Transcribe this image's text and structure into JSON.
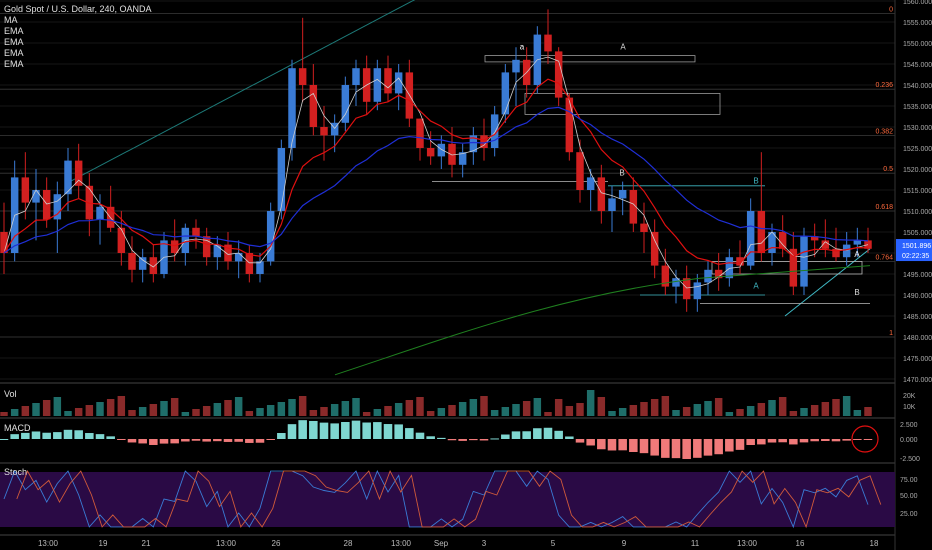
{
  "header": {
    "title": "Gold Spot / U.S. Dollar, 240, OANDA",
    "indicators": [
      "MA",
      "EMA",
      "EMA",
      "EMA",
      "EMA"
    ]
  },
  "panes": {
    "volume": "Vol",
    "macd": "MACD",
    "stoch": "Stoch"
  },
  "colors": {
    "up": "#3a7bd5",
    "down": "#d22020",
    "bg": "#000000",
    "price_tag": "#2962ff",
    "ma": "#cfcfcf",
    "ema_fast": "#e01010",
    "ema_mid": "#1f2fd6",
    "ema_slow": "#1f7f1f",
    "fib": "#ff6a3d",
    "zone": "#9a9a9a",
    "teal": "#3fb8c4",
    "stoch_bg": "#2a0a45"
  },
  "last_price": {
    "value": "1501.896",
    "countdown": "02:22:35"
  },
  "chart_data": {
    "type": "candlestick",
    "title": "Gold Spot / U.S. Dollar, 240, OANDA",
    "timeframe": "240",
    "ylim": [
      1470,
      1560
    ],
    "price_ticks": [
      "1560.000",
      "1555.000",
      "1550.000",
      "1545.000",
      "1540.000",
      "1535.000",
      "1530.000",
      "1525.000",
      "1520.000",
      "1515.000",
      "1510.000",
      "1505.000",
      "1500.000",
      "1495.000",
      "1490.000",
      "1485.000",
      "1480.000",
      "1475.000",
      "1470.000"
    ],
    "x_ticks": [
      "13:00",
      "19",
      "21",
      "13:00",
      "26",
      "28",
      "13:00",
      "Sep",
      "3",
      "5",
      "9",
      "11",
      "13:00",
      "16",
      "18"
    ],
    "fib_levels": [
      {
        "label": "0",
        "price": 1557
      },
      {
        "label": "0.236",
        "price": 1539
      },
      {
        "label": "0.382",
        "price": 1528
      },
      {
        "label": "0.5",
        "price": 1519
      },
      {
        "label": "0.618",
        "price": 1510
      },
      {
        "label": "0.764",
        "price": 1498
      },
      {
        "label": "1",
        "price": 1480
      }
    ],
    "annotations": [
      "a",
      "A",
      "B",
      "B",
      "A",
      "A",
      "B"
    ],
    "volume_ticks": [
      "20K",
      "10K"
    ],
    "macd_ticks": [
      "2.500",
      "0.000",
      "-2.500"
    ],
    "stoch_ticks": [
      "75.00",
      "50.00",
      "25.00"
    ],
    "candles_ohlc": [
      [
        1505,
        1512,
        1495,
        1500
      ],
      [
        1500,
        1522,
        1498,
        1518
      ],
      [
        1518,
        1524,
        1508,
        1512
      ],
      [
        1512,
        1520,
        1503,
        1515
      ],
      [
        1515,
        1518,
        1506,
        1508
      ],
      [
        1508,
        1517,
        1500,
        1514
      ],
      [
        1514,
        1525,
        1510,
        1522
      ],
      [
        1522,
        1526,
        1513,
        1516
      ],
      [
        1516,
        1519,
        1504,
        1508
      ],
      [
        1508,
        1514,
        1502,
        1511
      ],
      [
        1511,
        1516,
        1505,
        1506
      ],
      [
        1506,
        1510,
        1497,
        1500
      ],
      [
        1500,
        1504,
        1493,
        1496
      ],
      [
        1496,
        1501,
        1493,
        1499
      ],
      [
        1499,
        1502,
        1493,
        1495
      ],
      [
        1495,
        1505,
        1494,
        1503
      ],
      [
        1503,
        1508,
        1498,
        1500
      ],
      [
        1500,
        1507,
        1497,
        1506
      ],
      [
        1506,
        1508,
        1501,
        1504
      ],
      [
        1504,
        1506,
        1497,
        1499
      ],
      [
        1499,
        1504,
        1496,
        1502
      ],
      [
        1502,
        1505,
        1496,
        1498
      ],
      [
        1498,
        1503,
        1494,
        1500
      ],
      [
        1500,
        1502,
        1493,
        1495
      ],
      [
        1495,
        1500,
        1493,
        1498
      ],
      [
        1498,
        1512,
        1497,
        1510
      ],
      [
        1510,
        1527,
        1508,
        1525
      ],
      [
        1525,
        1546,
        1522,
        1544
      ],
      [
        1544,
        1556,
        1536,
        1540
      ],
      [
        1540,
        1545,
        1528,
        1530
      ],
      [
        1530,
        1535,
        1522,
        1528
      ],
      [
        1528,
        1533,
        1524,
        1531
      ],
      [
        1531,
        1542,
        1529,
        1540
      ],
      [
        1540,
        1546,
        1535,
        1544
      ],
      [
        1544,
        1547,
        1533,
        1536
      ],
      [
        1536,
        1546,
        1534,
        1544
      ],
      [
        1544,
        1547,
        1536,
        1538
      ],
      [
        1538,
        1545,
        1534,
        1543
      ],
      [
        1543,
        1546,
        1530,
        1532
      ],
      [
        1532,
        1532,
        1522,
        1525
      ],
      [
        1525,
        1529,
        1521,
        1523
      ],
      [
        1523,
        1528,
        1520,
        1526
      ],
      [
        1526,
        1530,
        1518,
        1521
      ],
      [
        1521,
        1526,
        1518,
        1524
      ],
      [
        1524,
        1530,
        1521,
        1528
      ],
      [
        1528,
        1532,
        1522,
        1525
      ],
      [
        1525,
        1535,
        1523,
        1533
      ],
      [
        1533,
        1545,
        1531,
        1543
      ],
      [
        1543,
        1549,
        1535,
        1546
      ],
      [
        1546,
        1549,
        1537,
        1540
      ],
      [
        1540,
        1554,
        1538,
        1552
      ],
      [
        1552,
        1558,
        1545,
        1548
      ],
      [
        1548,
        1549,
        1535,
        1537
      ],
      [
        1537,
        1538,
        1522,
        1524
      ],
      [
        1524,
        1527,
        1512,
        1515
      ],
      [
        1515,
        1520,
        1510,
        1518
      ],
      [
        1518,
        1521,
        1507,
        1510
      ],
      [
        1510,
        1516,
        1505,
        1513
      ],
      [
        1513,
        1517,
        1509,
        1515
      ],
      [
        1515,
        1518,
        1505,
        1507
      ],
      [
        1507,
        1512,
        1500,
        1505
      ],
      [
        1505,
        1508,
        1494,
        1497
      ],
      [
        1497,
        1501,
        1490,
        1492
      ],
      [
        1492,
        1496,
        1488,
        1494
      ],
      [
        1494,
        1497,
        1486,
        1489
      ],
      [
        1489,
        1495,
        1486,
        1493
      ],
      [
        1493,
        1498,
        1490,
        1496
      ],
      [
        1496,
        1500,
        1491,
        1494
      ],
      [
        1494,
        1501,
        1492,
        1499
      ],
      [
        1499,
        1503,
        1495,
        1497
      ],
      [
        1497,
        1513,
        1496,
        1510
      ],
      [
        1510,
        1524,
        1498,
        1500
      ],
      [
        1500,
        1507,
        1497,
        1505
      ],
      [
        1505,
        1509,
        1499,
        1501
      ],
      [
        1501,
        1505,
        1490,
        1492
      ],
      [
        1492,
        1506,
        1490,
        1504
      ],
      [
        1504,
        1507,
        1499,
        1503
      ],
      [
        1503,
        1508,
        1499,
        1501
      ],
      [
        1501,
        1506,
        1498,
        1499
      ],
      [
        1499,
        1505,
        1497,
        1502
      ],
      [
        1502,
        1506,
        1499,
        1503
      ],
      [
        1503,
        1506,
        1500,
        1501
      ]
    ]
  }
}
